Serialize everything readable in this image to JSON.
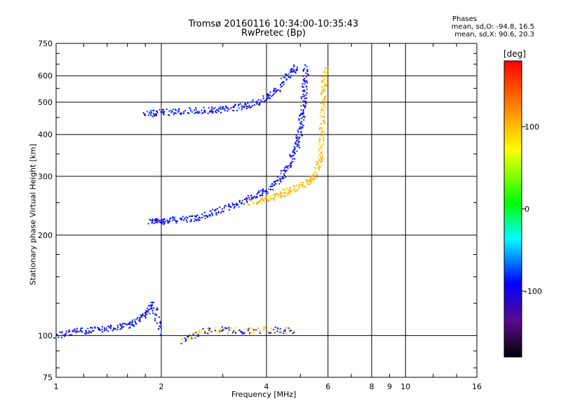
{
  "header": {
    "title_line1": "Tromsø 20160116 10:34:00-10:35:43",
    "title_line2": "RwPretec (Bp)",
    "stats_title": "Phases",
    "stats_o": "mean, sd,O: -94.8, 16.5",
    "stats_x": "mean, sd,X:  90.6, 20.3"
  },
  "colorbar": {
    "label": "[deg]",
    "ticks": [
      "100",
      "0",
      "-100"
    ],
    "tick_values": [
      100,
      0,
      -100
    ],
    "range": [
      -180,
      180
    ]
  },
  "chart_data": {
    "type": "scatter",
    "title": "Tromsø 20160116 10:34:00-10:35:43",
    "subtitle": "RwPretec (Bp)",
    "xlabel": "Frequency [MHz]",
    "ylabel": "Stationary phase Virtual Height [km]",
    "xscale": "log",
    "yscale": "log",
    "xlim": [
      1,
      16
    ],
    "ylim": [
      75,
      750
    ],
    "xticks": [
      1,
      2,
      4,
      6,
      8,
      10,
      16
    ],
    "xtick_labels": [
      "1",
      "2",
      "4",
      "6",
      "8",
      "10",
      "16"
    ],
    "xminor_labels": [
      9
    ],
    "yticks": [
      75,
      100,
      200,
      300,
      400,
      500,
      600,
      750
    ],
    "ytick_labels": [
      "75",
      "100",
      "200",
      "300",
      "400",
      "500",
      "600",
      "750"
    ],
    "grid": true,
    "color_scale": "phase (deg), rainbow, -180 to 180",
    "traces": [
      {
        "mode": "O",
        "phase": -100,
        "points": [
          [
            1.85,
            220
          ],
          [
            2.0,
            220
          ],
          [
            2.2,
            222
          ],
          [
            2.5,
            224
          ],
          [
            2.8,
            232
          ],
          [
            3.2,
            245
          ],
          [
            3.6,
            258
          ],
          [
            4.0,
            272
          ],
          [
            4.4,
            295
          ],
          [
            4.7,
            330
          ],
          [
            4.9,
            370
          ],
          [
            5.0,
            420
          ],
          [
            5.1,
            480
          ],
          [
            5.15,
            560
          ],
          [
            5.2,
            640
          ]
        ]
      },
      {
        "mode": "O",
        "phase": -100,
        "points": [
          [
            1.8,
            460
          ],
          [
            2.0,
            465
          ],
          [
            2.3,
            470
          ],
          [
            2.7,
            472
          ],
          [
            3.0,
            475
          ],
          [
            3.4,
            485
          ],
          [
            3.8,
            500
          ],
          [
            4.2,
            530
          ],
          [
            4.6,
            600
          ],
          [
            4.9,
            640
          ]
        ]
      },
      {
        "mode": "X",
        "phase": 100,
        "points": [
          [
            3.6,
            250
          ],
          [
            4.0,
            255
          ],
          [
            4.4,
            265
          ],
          [
            4.8,
            275
          ],
          [
            5.2,
            285
          ],
          [
            5.5,
            300
          ],
          [
            5.7,
            340
          ],
          [
            5.75,
            400
          ],
          [
            5.8,
            480
          ],
          [
            5.85,
            560
          ],
          [
            5.9,
            640
          ]
        ]
      },
      {
        "mode": "O",
        "phase": -100,
        "points": [
          [
            1.0,
            100
          ],
          [
            1.15,
            103
          ],
          [
            1.3,
            104
          ],
          [
            1.5,
            106
          ],
          [
            1.65,
            108
          ],
          [
            1.8,
            115
          ],
          [
            1.9,
            125
          ],
          [
            2.0,
            101
          ]
        ]
      },
      {
        "mode": "mixed",
        "phase": 100,
        "points": [
          [
            2.3,
            96
          ],
          [
            2.6,
            103
          ],
          [
            3.0,
            104
          ],
          [
            3.5,
            103
          ],
          [
            4.2,
            104
          ],
          [
            4.8,
            103
          ]
        ]
      }
    ]
  }
}
